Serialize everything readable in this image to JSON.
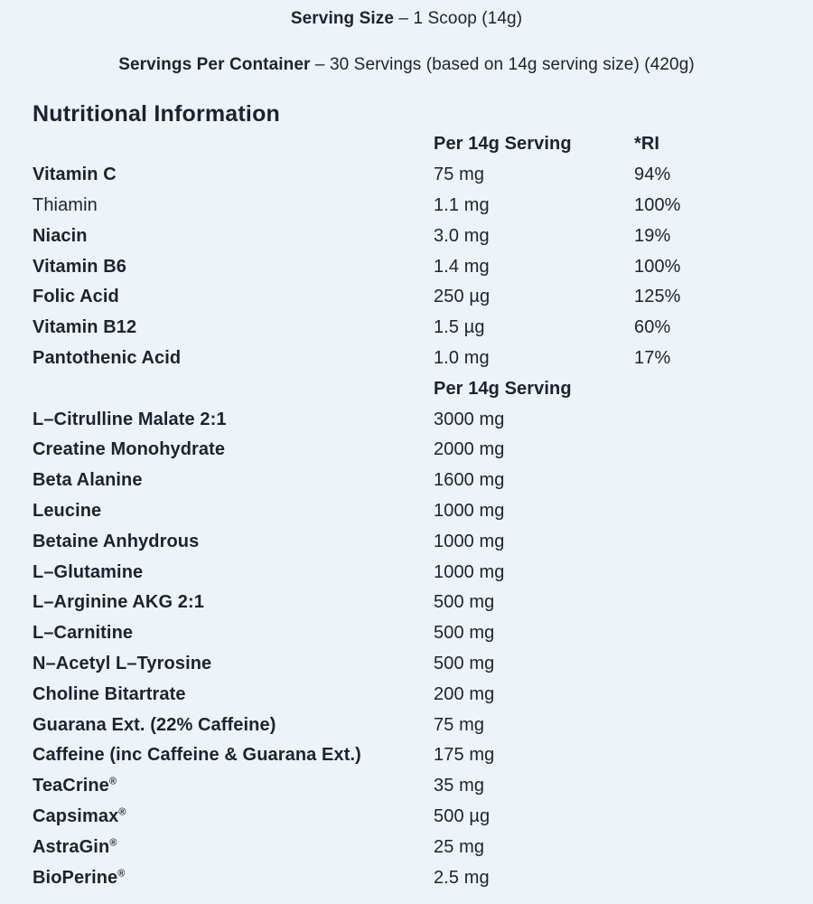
{
  "page": {
    "background_color": "#edf3f8",
    "text_color": "#1d232c"
  },
  "header": {
    "serving_size_label": "Serving Size",
    "serving_size_rest": "– 1 Scoop (14g)",
    "servings_label": "Servings Per Container",
    "servings_rest": "– 30 Servings (based on 14g serving size) (420g)",
    "title": "Nutritional Information"
  },
  "table": {
    "sections": [
      {
        "header": {
          "amount": "Per 14g Serving",
          "ri": "*RI"
        },
        "rows": [
          {
            "name": "Vitamin C",
            "bold": true,
            "amount": "75 mg",
            "ri": "94%"
          },
          {
            "name": "Thiamin",
            "bold": false,
            "amount": "1.1 mg",
            "ri": "100%"
          },
          {
            "name": "Niacin",
            "bold": true,
            "amount": "3.0 mg",
            "ri": "19%"
          },
          {
            "name": "Vitamin B6",
            "bold": true,
            "amount": "1.4 mg",
            "ri": "100%"
          },
          {
            "name": "Folic Acid",
            "bold": true,
            "amount": "250 µg",
            "ri": "125%"
          },
          {
            "name": "Vitamin B12",
            "bold": true,
            "amount": "1.5 µg",
            "ri": "60%"
          },
          {
            "name": "Pantothenic Acid",
            "bold": true,
            "amount": "1.0 mg",
            "ri": "17%"
          }
        ]
      },
      {
        "header": {
          "amount": "Per 14g Serving",
          "ri": ""
        },
        "rows": [
          {
            "name": "L–Citrulline Malate 2:1",
            "bold": true,
            "amount": "3000 mg",
            "ri": ""
          },
          {
            "name": "Creatine Monohydrate",
            "bold": true,
            "amount": "2000 mg",
            "ri": ""
          },
          {
            "name": "Beta Alanine",
            "bold": true,
            "amount": "1600 mg",
            "ri": ""
          },
          {
            "name": "Leucine",
            "bold": true,
            "amount": "1000 mg",
            "ri": ""
          },
          {
            "name": "Betaine Anhydrous",
            "bold": true,
            "amount": "1000 mg",
            "ri": ""
          },
          {
            "name": "L–Glutamine",
            "bold": true,
            "amount": "1000 mg",
            "ri": ""
          },
          {
            "name": "L–Arginine AKG 2:1",
            "bold": true,
            "amount": "500 mg",
            "ri": ""
          },
          {
            "name": "L–Carnitine",
            "bold": true,
            "amount": "500 mg",
            "ri": ""
          },
          {
            "name": "N–Acetyl L–Tyrosine",
            "bold": true,
            "amount": "500 mg",
            "ri": ""
          },
          {
            "name": "Choline Bitartrate",
            "bold": true,
            "amount": "200 mg",
            "ri": ""
          },
          {
            "name": "Guarana Ext. (22% Caffeine)",
            "bold": true,
            "amount": "75 mg",
            "ri": ""
          },
          {
            "name": "Caffeine (inc Caffeine & Guarana Ext.)",
            "bold": true,
            "amount": "175 mg",
            "ri": ""
          },
          {
            "name": "TeaCrine",
            "mark": "®",
            "bold": true,
            "amount": "35 mg",
            "ri": ""
          },
          {
            "name": "Capsimax",
            "mark": "®",
            "bold": true,
            "amount": "500 µg",
            "ri": ""
          },
          {
            "name": "AstraGin",
            "mark": "®",
            "bold": true,
            "amount": "25 mg",
            "ri": ""
          },
          {
            "name": "BioPerine",
            "mark": "®",
            "bold": true,
            "amount": "2.5 mg",
            "ri": ""
          }
        ]
      }
    ]
  }
}
